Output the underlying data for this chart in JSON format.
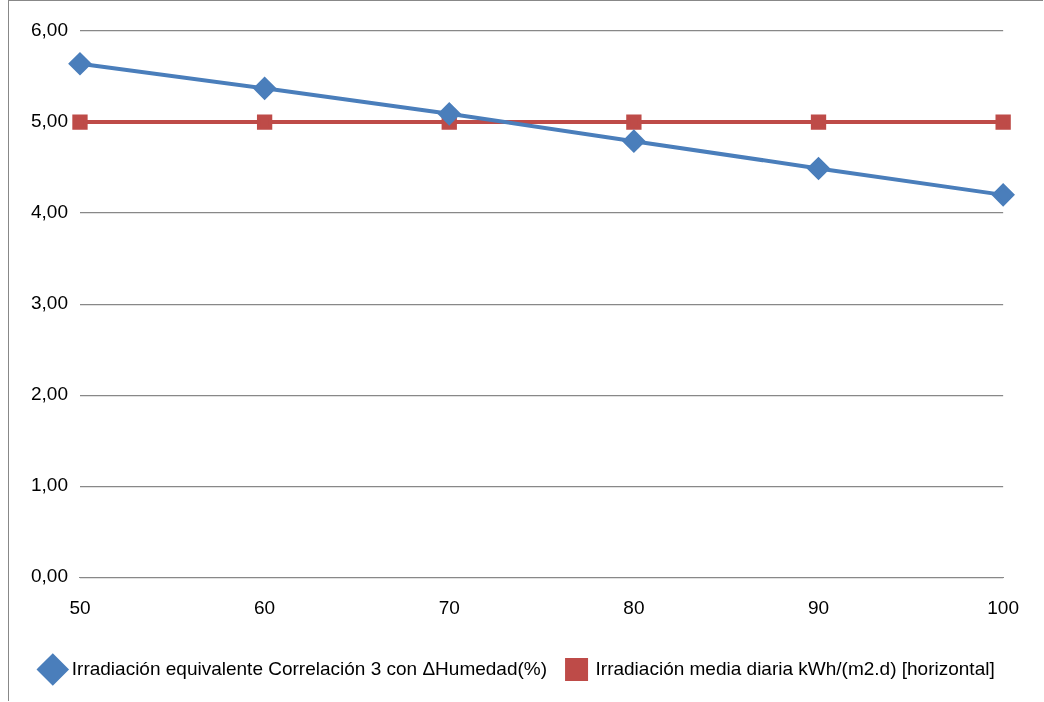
{
  "chart_data": {
    "type": "line",
    "categories": [
      "50",
      "60",
      "70",
      "80",
      "90",
      "100"
    ],
    "series": [
      {
        "name": "Irradiación equivalente Correlación 3 con ΔHumedad(%)",
        "color": "#4a7ebb",
        "marker": "diamond",
        "values": [
          5.64,
          5.37,
          5.09,
          4.79,
          4.49,
          4.2
        ]
      },
      {
        "name": "Irradiación media diaria kWh/(m2.d) [horizontal]",
        "color": "#be4b48",
        "marker": "square",
        "values": [
          5.0,
          5.0,
          5.0,
          5.0,
          5.0,
          5.0
        ]
      }
    ],
    "ylim": [
      0,
      6
    ],
    "yticks": [
      {
        "value": 0,
        "label": "0,00"
      },
      {
        "value": 1,
        "label": "1,00"
      },
      {
        "value": 2,
        "label": "2,00"
      },
      {
        "value": 3,
        "label": "3,00"
      },
      {
        "value": 4,
        "label": "4,00"
      },
      {
        "value": 5,
        "label": "5,00"
      },
      {
        "value": 6,
        "label": "6,00"
      }
    ],
    "grid": "y",
    "legend": "bottom",
    "line_style": "solid"
  }
}
